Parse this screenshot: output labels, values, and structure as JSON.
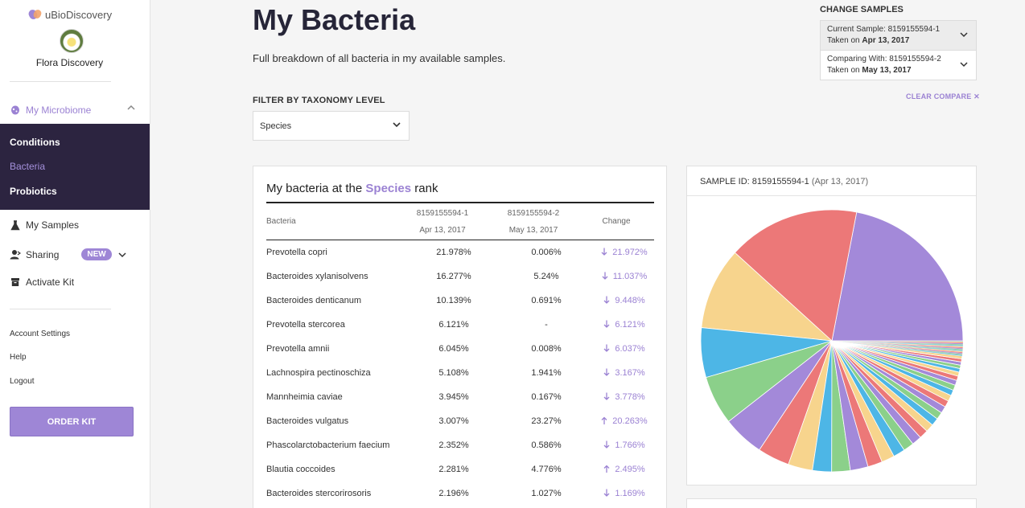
{
  "app": {
    "name": "uBioDiscovery",
    "profile_name": "Flora Discovery"
  },
  "sidebar": {
    "microbiome_label": "My Microbiome",
    "submenu": [
      "Conditions",
      "Bacteria",
      "Probiotics"
    ],
    "active_submenu": "Bacteria",
    "my_samples": "My Samples",
    "sharing": "Sharing",
    "new_badge": "NEW",
    "activate_kit": "Activate Kit",
    "account_settings": "Account Settings",
    "help": "Help",
    "logout": "Logout",
    "order_kit": "ORDER KIT"
  },
  "header": {
    "title": "My Bacteria",
    "subtitle": "Full breakdown of all bacteria in my available samples."
  },
  "filter": {
    "label": "FILTER BY TAXONOMY LEVEL",
    "value": "Species"
  },
  "samples": {
    "label": "CHANGE SAMPLES",
    "current_line": "Current Sample: 8159155594-1",
    "current_taken_prefix": "Taken on",
    "current_date": "Apr 13, 2017",
    "compare_line": "Comparing With: 8159155594-2",
    "compare_taken_prefix": "Taken on",
    "compare_date": "May 13, 2017",
    "clear": "CLEAR COMPARE ✕"
  },
  "table": {
    "title_prefix": "My bacteria at the",
    "title_rank": "Species",
    "title_suffix": "rank",
    "col_bacteria": "Bacteria",
    "col1_id": "8159155594-1",
    "col1_date": "Apr 13, 2017",
    "col2_id": "8159155594-2",
    "col2_date": "May 13, 2017",
    "col_change": "Change",
    "rows": [
      {
        "name": "Prevotella copri",
        "v1": "21.978%",
        "v2": "0.006%",
        "dir": "down",
        "change": "21.972%"
      },
      {
        "name": "Bacteroides xylanisolvens",
        "v1": "16.277%",
        "v2": "5.24%",
        "dir": "down",
        "change": "11.037%"
      },
      {
        "name": "Bacteroides denticanum",
        "v1": "10.139%",
        "v2": "0.691%",
        "dir": "down",
        "change": "9.448%"
      },
      {
        "name": "Prevotella stercorea",
        "v1": "6.121%",
        "v2": "-",
        "dir": "down",
        "change": "6.121%"
      },
      {
        "name": "Prevotella amnii",
        "v1": "6.045%",
        "v2": "0.008%",
        "dir": "down",
        "change": "6.037%"
      },
      {
        "name": "Lachnospira pectinoschiza",
        "v1": "5.108%",
        "v2": "1.941%",
        "dir": "down",
        "change": "3.167%"
      },
      {
        "name": "Mannheimia caviae",
        "v1": "3.945%",
        "v2": "0.167%",
        "dir": "down",
        "change": "3.778%"
      },
      {
        "name": "Bacteroides vulgatus",
        "v1": "3.007%",
        "v2": "23.27%",
        "dir": "up",
        "change": "20.263%"
      },
      {
        "name": "Phascolarctobacterium faecium",
        "v1": "2.352%",
        "v2": "0.586%",
        "dir": "down",
        "change": "1.766%"
      },
      {
        "name": "Blautia coccoides",
        "v1": "2.281%",
        "v2": "4.776%",
        "dir": "up",
        "change": "2.495%"
      },
      {
        "name": "Bacteroides stercorirosoris",
        "v1": "2.196%",
        "v2": "1.027%",
        "dir": "down",
        "change": "1.169%"
      }
    ]
  },
  "pie": {
    "id_label": "SAMPLE ID: 8159155594-1",
    "date_label": "(Apr 13, 2017)",
    "colors": [
      "#a389d9",
      "#ec7878",
      "#f7d48d",
      "#4db6e6",
      "#8bd08a"
    ],
    "slices": [
      21.978,
      16.277,
      10.139,
      6.121,
      6.045,
      5.108,
      3.945,
      3.007,
      2.352,
      2.281,
      2.196,
      1.8,
      1.6,
      1.45,
      1.3,
      1.2,
      1.1,
      1.0,
      0.95,
      0.9,
      0.85,
      0.8,
      0.75,
      0.7,
      0.65,
      0.6,
      0.55,
      0.5,
      0.45,
      0.42,
      0.4,
      0.38,
      0.35
    ]
  },
  "colors": {
    "accent": "#9e86d6",
    "submenu_bg": "#2c2440"
  }
}
